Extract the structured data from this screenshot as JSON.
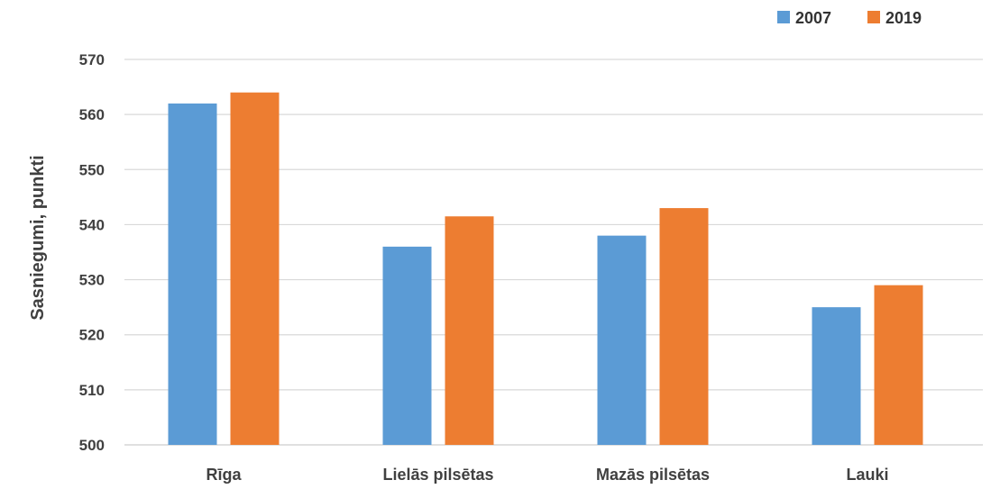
{
  "chart_data": {
    "type": "bar",
    "categories": [
      "Rīga",
      "Lielās pilsētas",
      "Mazās pilsētas",
      "Lauki"
    ],
    "series": [
      {
        "name": "2007",
        "values": [
          562,
          536,
          538,
          525
        ],
        "color": "#5B9BD5"
      },
      {
        "name": "2019",
        "values": [
          564,
          541.5,
          543,
          529
        ],
        "color": "#ED7D31"
      }
    ],
    "ylabel": "Sasniegumi, punkti",
    "xlabel": "",
    "ylim": [
      500,
      570
    ],
    "yticks": [
      500,
      510,
      520,
      530,
      540,
      550,
      560,
      570
    ],
    "grid": true,
    "legend": "top-right",
    "gridline_color": "#D9D9D9"
  }
}
